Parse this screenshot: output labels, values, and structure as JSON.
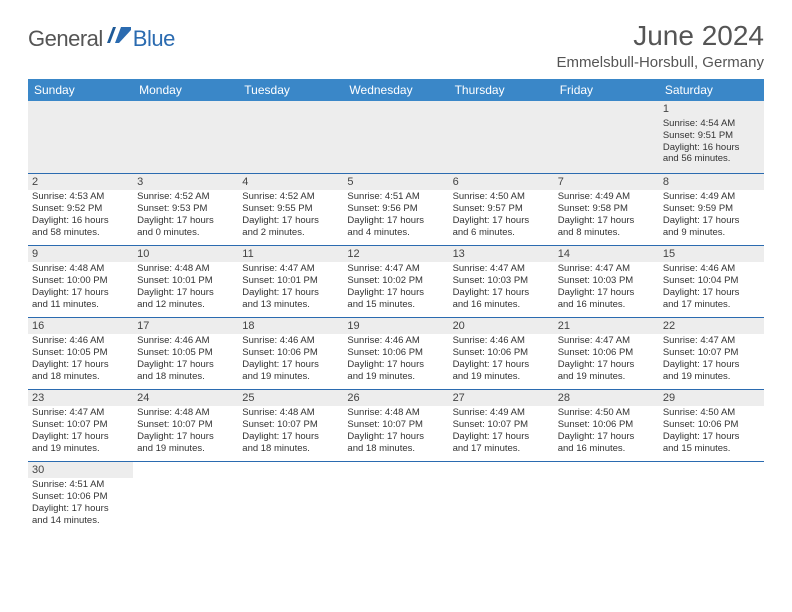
{
  "logo": {
    "text1": "General",
    "text2": "Blue",
    "flag_color": "#2b6bb0"
  },
  "title": "June 2024",
  "location": "Emmelsbull-Horsbull, Germany",
  "day_headers": [
    "Sunday",
    "Monday",
    "Tuesday",
    "Wednesday",
    "Thursday",
    "Friday",
    "Saturday"
  ],
  "colors": {
    "header_bg": "#3a87c8",
    "row_border": "#2b6bb0",
    "shaded_bg": "#ededed",
    "text": "#333333"
  },
  "weeks": [
    [
      null,
      null,
      null,
      null,
      null,
      null,
      {
        "n": "1",
        "sr": "Sunrise: 4:54 AM",
        "ss": "Sunset: 9:51 PM",
        "d1": "Daylight: 16 hours",
        "d2": "and 56 minutes."
      }
    ],
    [
      {
        "n": "2",
        "sr": "Sunrise: 4:53 AM",
        "ss": "Sunset: 9:52 PM",
        "d1": "Daylight: 16 hours",
        "d2": "and 58 minutes."
      },
      {
        "n": "3",
        "sr": "Sunrise: 4:52 AM",
        "ss": "Sunset: 9:53 PM",
        "d1": "Daylight: 17 hours",
        "d2": "and 0 minutes."
      },
      {
        "n": "4",
        "sr": "Sunrise: 4:52 AM",
        "ss": "Sunset: 9:55 PM",
        "d1": "Daylight: 17 hours",
        "d2": "and 2 minutes."
      },
      {
        "n": "5",
        "sr": "Sunrise: 4:51 AM",
        "ss": "Sunset: 9:56 PM",
        "d1": "Daylight: 17 hours",
        "d2": "and 4 minutes."
      },
      {
        "n": "6",
        "sr": "Sunrise: 4:50 AM",
        "ss": "Sunset: 9:57 PM",
        "d1": "Daylight: 17 hours",
        "d2": "and 6 minutes."
      },
      {
        "n": "7",
        "sr": "Sunrise: 4:49 AM",
        "ss": "Sunset: 9:58 PM",
        "d1": "Daylight: 17 hours",
        "d2": "and 8 minutes."
      },
      {
        "n": "8",
        "sr": "Sunrise: 4:49 AM",
        "ss": "Sunset: 9:59 PM",
        "d1": "Daylight: 17 hours",
        "d2": "and 9 minutes."
      }
    ],
    [
      {
        "n": "9",
        "sr": "Sunrise: 4:48 AM",
        "ss": "Sunset: 10:00 PM",
        "d1": "Daylight: 17 hours",
        "d2": "and 11 minutes."
      },
      {
        "n": "10",
        "sr": "Sunrise: 4:48 AM",
        "ss": "Sunset: 10:01 PM",
        "d1": "Daylight: 17 hours",
        "d2": "and 12 minutes."
      },
      {
        "n": "11",
        "sr": "Sunrise: 4:47 AM",
        "ss": "Sunset: 10:01 PM",
        "d1": "Daylight: 17 hours",
        "d2": "and 13 minutes."
      },
      {
        "n": "12",
        "sr": "Sunrise: 4:47 AM",
        "ss": "Sunset: 10:02 PM",
        "d1": "Daylight: 17 hours",
        "d2": "and 15 minutes."
      },
      {
        "n": "13",
        "sr": "Sunrise: 4:47 AM",
        "ss": "Sunset: 10:03 PM",
        "d1": "Daylight: 17 hours",
        "d2": "and 16 minutes."
      },
      {
        "n": "14",
        "sr": "Sunrise: 4:47 AM",
        "ss": "Sunset: 10:03 PM",
        "d1": "Daylight: 17 hours",
        "d2": "and 16 minutes."
      },
      {
        "n": "15",
        "sr": "Sunrise: 4:46 AM",
        "ss": "Sunset: 10:04 PM",
        "d1": "Daylight: 17 hours",
        "d2": "and 17 minutes."
      }
    ],
    [
      {
        "n": "16",
        "sr": "Sunrise: 4:46 AM",
        "ss": "Sunset: 10:05 PM",
        "d1": "Daylight: 17 hours",
        "d2": "and 18 minutes."
      },
      {
        "n": "17",
        "sr": "Sunrise: 4:46 AM",
        "ss": "Sunset: 10:05 PM",
        "d1": "Daylight: 17 hours",
        "d2": "and 18 minutes."
      },
      {
        "n": "18",
        "sr": "Sunrise: 4:46 AM",
        "ss": "Sunset: 10:06 PM",
        "d1": "Daylight: 17 hours",
        "d2": "and 19 minutes."
      },
      {
        "n": "19",
        "sr": "Sunrise: 4:46 AM",
        "ss": "Sunset: 10:06 PM",
        "d1": "Daylight: 17 hours",
        "d2": "and 19 minutes."
      },
      {
        "n": "20",
        "sr": "Sunrise: 4:46 AM",
        "ss": "Sunset: 10:06 PM",
        "d1": "Daylight: 17 hours",
        "d2": "and 19 minutes."
      },
      {
        "n": "21",
        "sr": "Sunrise: 4:47 AM",
        "ss": "Sunset: 10:06 PM",
        "d1": "Daylight: 17 hours",
        "d2": "and 19 minutes."
      },
      {
        "n": "22",
        "sr": "Sunrise: 4:47 AM",
        "ss": "Sunset: 10:07 PM",
        "d1": "Daylight: 17 hours",
        "d2": "and 19 minutes."
      }
    ],
    [
      {
        "n": "23",
        "sr": "Sunrise: 4:47 AM",
        "ss": "Sunset: 10:07 PM",
        "d1": "Daylight: 17 hours",
        "d2": "and 19 minutes."
      },
      {
        "n": "24",
        "sr": "Sunrise: 4:48 AM",
        "ss": "Sunset: 10:07 PM",
        "d1": "Daylight: 17 hours",
        "d2": "and 19 minutes."
      },
      {
        "n": "25",
        "sr": "Sunrise: 4:48 AM",
        "ss": "Sunset: 10:07 PM",
        "d1": "Daylight: 17 hours",
        "d2": "and 18 minutes."
      },
      {
        "n": "26",
        "sr": "Sunrise: 4:48 AM",
        "ss": "Sunset: 10:07 PM",
        "d1": "Daylight: 17 hours",
        "d2": "and 18 minutes."
      },
      {
        "n": "27",
        "sr": "Sunrise: 4:49 AM",
        "ss": "Sunset: 10:07 PM",
        "d1": "Daylight: 17 hours",
        "d2": "and 17 minutes."
      },
      {
        "n": "28",
        "sr": "Sunrise: 4:50 AM",
        "ss": "Sunset: 10:06 PM",
        "d1": "Daylight: 17 hours",
        "d2": "and 16 minutes."
      },
      {
        "n": "29",
        "sr": "Sunrise: 4:50 AM",
        "ss": "Sunset: 10:06 PM",
        "d1": "Daylight: 17 hours",
        "d2": "and 15 minutes."
      }
    ],
    [
      {
        "n": "30",
        "sr": "Sunrise: 4:51 AM",
        "ss": "Sunset: 10:06 PM",
        "d1": "Daylight: 17 hours",
        "d2": "and 14 minutes."
      },
      null,
      null,
      null,
      null,
      null,
      null
    ]
  ]
}
